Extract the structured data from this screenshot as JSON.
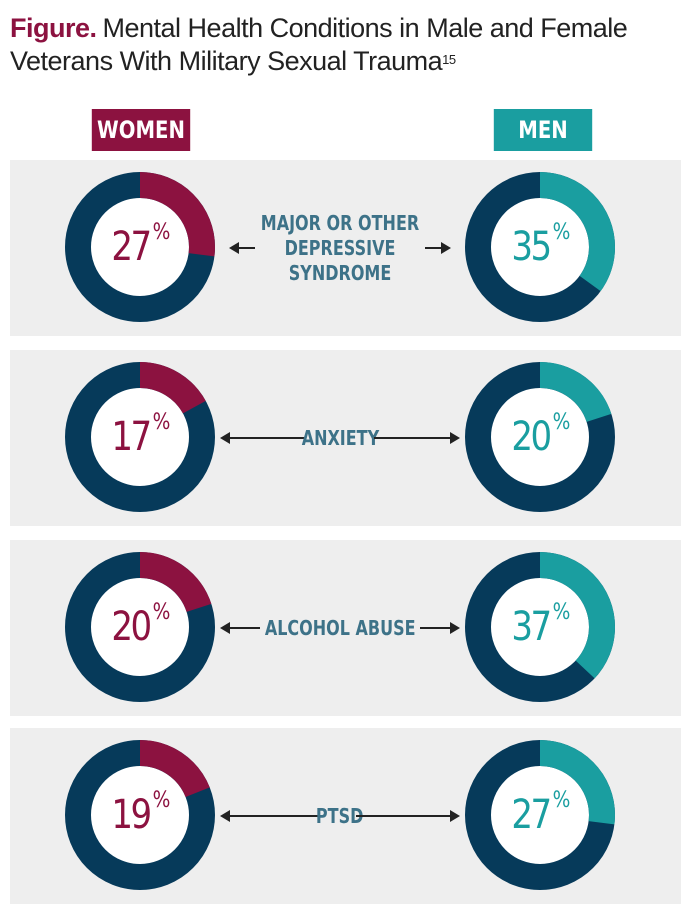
{
  "title": {
    "lead": "Figure.",
    "text": "Mental Health Conditions in Male and Female Veterans With Military Sexual Trauma",
    "ref": "15"
  },
  "groups": {
    "women": "WOMEN",
    "men": "MEN"
  },
  "colors": {
    "women": "#8c1240",
    "men": "#1a9ea0",
    "ring": "#063a5a",
    "panel": "#eeeeee",
    "label": "#3d7288"
  },
  "chart_data": {
    "type": "pie",
    "categories": [
      "MAJOR OR OTHER DEPRESSIVE SYNDROME",
      "ANXIETY",
      "ALCOHOL ABUSE",
      "PTSD"
    ],
    "category_lines": [
      [
        "MAJOR OR OTHER",
        "DEPRESSIVE",
        "SYNDROME"
      ],
      [
        "ANXIETY"
      ],
      [
        "ALCOHOL ABUSE"
      ],
      [
        "PTSD"
      ]
    ],
    "series": [
      {
        "name": "WOMEN",
        "values": [
          27,
          17,
          20,
          19
        ]
      },
      {
        "name": "MEN",
        "values": [
          35,
          20,
          37,
          27
        ]
      }
    ],
    "unit": "%"
  }
}
